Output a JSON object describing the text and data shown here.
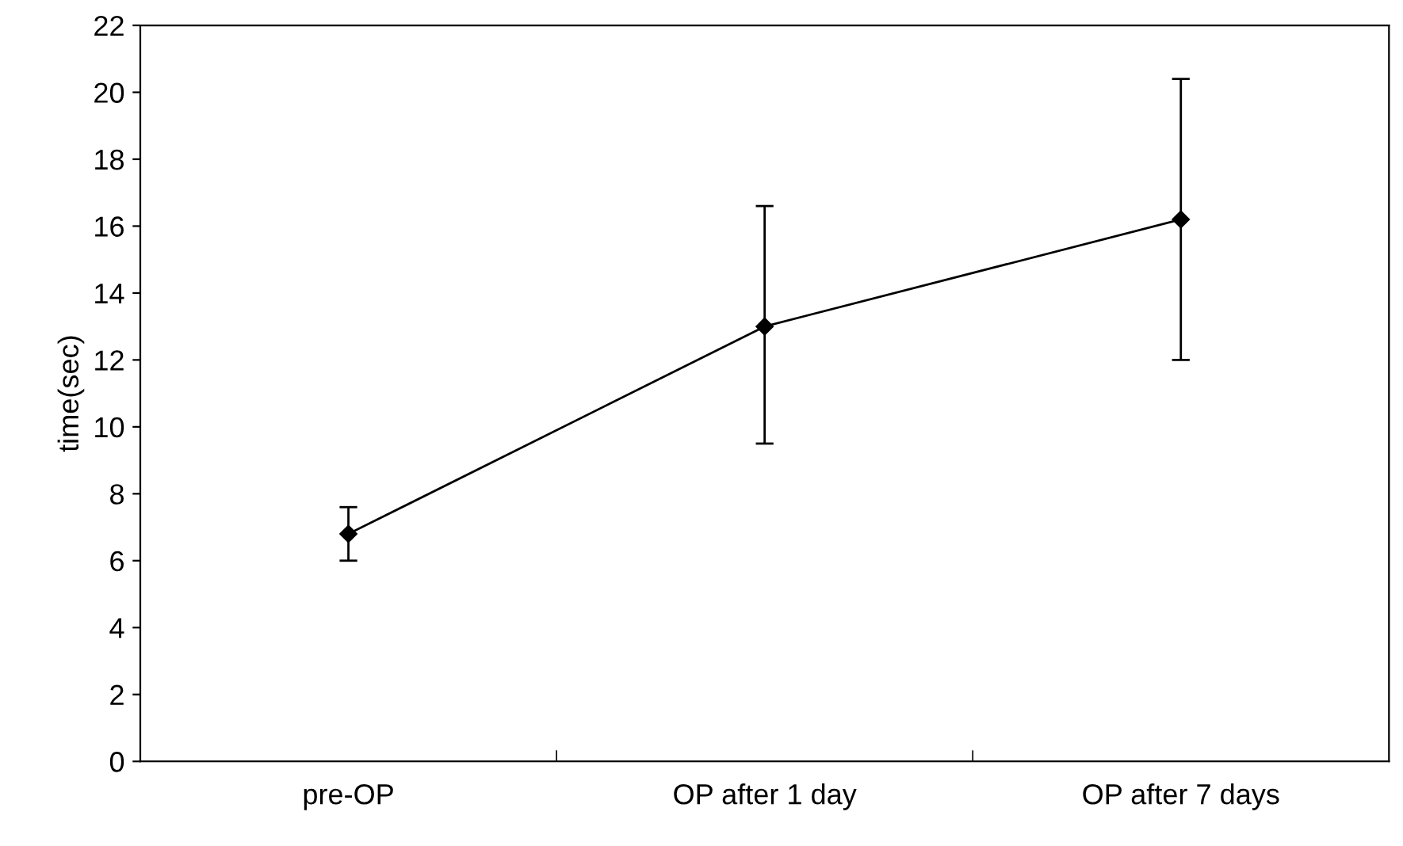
{
  "chart_data": {
    "type": "line",
    "ylabel": "time(sec)",
    "categories": [
      "pre-OP",
      "OP after 1 day",
      "OP after 7 days"
    ],
    "series": [
      {
        "color": "#000000",
        "values": [
          6.8,
          13.0,
          16.2
        ],
        "errors": [
          [
            6.0,
            7.6
          ],
          [
            9.5,
            16.6
          ],
          [
            12.0,
            20.4
          ]
        ]
      }
    ],
    "ylim": [
      0,
      22
    ],
    "yticks": [
      0,
      2,
      4,
      6,
      8,
      10,
      12,
      14,
      16,
      18,
      20,
      22
    ],
    "marker": "diamond",
    "line_style": "solid",
    "grid": false,
    "legend": false
  }
}
